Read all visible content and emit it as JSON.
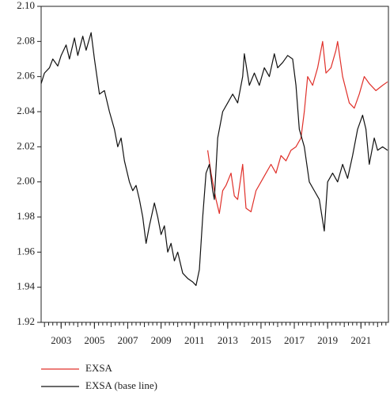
{
  "chart_data": {
    "type": "line",
    "xlim": [
      2001.8,
      2022.65
    ],
    "ylim": [
      1.92,
      2.1
    ],
    "xticks": [
      2003,
      2005,
      2007,
      2009,
      2011,
      2013,
      2015,
      2017,
      2019,
      2021
    ],
    "yticks": [
      1.92,
      1.94,
      1.96,
      1.98,
      {
        "value": 2.0,
        "label": "2.00"
      },
      2.02,
      2.04,
      2.06,
      2.08,
      {
        "value": 2.1,
        "label": "2.10"
      }
    ],
    "series": [
      {
        "name": "EXSA",
        "color": "#e0302a",
        "x": [
          2011.8,
          2012.0,
          2012.3,
          2012.5,
          2012.7,
          2012.9,
          2013.2,
          2013.4,
          2013.6,
          2013.9,
          2014.1,
          2014.4,
          2014.7,
          2015.0,
          2015.3,
          2015.6,
          2015.9,
          2016.2,
          2016.5,
          2016.8,
          2017.1,
          2017.4,
          2017.6,
          2017.8,
          2018.1,
          2018.4,
          2018.7,
          2018.9,
          2019.2,
          2019.5,
          2019.6,
          2019.9,
          2020.3,
          2020.6,
          2020.9,
          2021.2,
          2021.5,
          2021.9,
          2022.3,
          2022.6
        ],
        "values": [
          2.018,
          2.005,
          1.99,
          1.982,
          1.995,
          1.998,
          2.005,
          1.992,
          1.99,
          2.01,
          1.985,
          1.983,
          1.995,
          2.0,
          2.005,
          2.01,
          2.005,
          2.015,
          2.012,
          2.018,
          2.02,
          2.025,
          2.04,
          2.06,
          2.055,
          2.065,
          2.08,
          2.062,
          2.065,
          2.075,
          2.08,
          2.06,
          2.045,
          2.042,
          2.05,
          2.06,
          2.056,
          2.052,
          2.055,
          2.057
        ]
      },
      {
        "name": "EXSA (base line)",
        "color": "#111111",
        "x": [
          2001.8,
          2002.0,
          2002.3,
          2002.5,
          2002.8,
          2003.0,
          2003.3,
          2003.5,
          2003.8,
          2004.0,
          2004.3,
          2004.5,
          2004.8,
          2005.0,
          2005.3,
          2005.6,
          2005.9,
          2006.2,
          2006.4,
          2006.6,
          2006.8,
          2007.1,
          2007.3,
          2007.5,
          2007.7,
          2007.9,
          2008.1,
          2008.3,
          2008.6,
          2008.8,
          2009.0,
          2009.2,
          2009.4,
          2009.6,
          2009.8,
          2010.0,
          2010.3,
          2010.6,
          2010.9,
          2011.1,
          2011.3,
          2011.5,
          2011.7,
          2011.9,
          2012.1,
          2012.2,
          2012.4,
          2012.7,
          2013.0,
          2013.3,
          2013.6,
          2013.9,
          2014.0,
          2014.3,
          2014.6,
          2014.9,
          2015.2,
          2015.5,
          2015.8,
          2016.0,
          2016.3,
          2016.6,
          2016.9,
          2017.1,
          2017.3,
          2017.6,
          2017.9,
          2018.2,
          2018.5,
          2018.8,
          2019.0,
          2019.3,
          2019.6,
          2019.9,
          2020.2,
          2020.5,
          2020.8,
          2021.1,
          2021.3,
          2021.5,
          2021.8,
          2022.0,
          2022.3,
          2022.6
        ],
        "values": [
          2.056,
          2.062,
          2.065,
          2.07,
          2.066,
          2.072,
          2.078,
          2.07,
          2.082,
          2.072,
          2.083,
          2.075,
          2.085,
          2.07,
          2.05,
          2.052,
          2.04,
          2.03,
          2.02,
          2.025,
          2.012,
          2.0,
          1.995,
          1.998,
          1.99,
          1.98,
          1.965,
          1.975,
          1.988,
          1.98,
          1.97,
          1.975,
          1.96,
          1.965,
          1.955,
          1.96,
          1.948,
          1.945,
          1.943,
          1.941,
          1.95,
          1.98,
          2.005,
          2.01,
          1.995,
          1.99,
          2.025,
          2.04,
          2.045,
          2.05,
          2.045,
          2.06,
          2.073,
          2.055,
          2.062,
          2.055,
          2.065,
          2.06,
          2.073,
          2.065,
          2.068,
          2.072,
          2.07,
          2.055,
          2.03,
          2.02,
          2.0,
          1.995,
          1.99,
          1.972,
          2.0,
          2.005,
          2.0,
          2.01,
          2.002,
          2.015,
          2.03,
          2.038,
          2.03,
          2.01,
          2.025,
          2.018,
          2.02,
          2.018
        ]
      }
    ]
  }
}
